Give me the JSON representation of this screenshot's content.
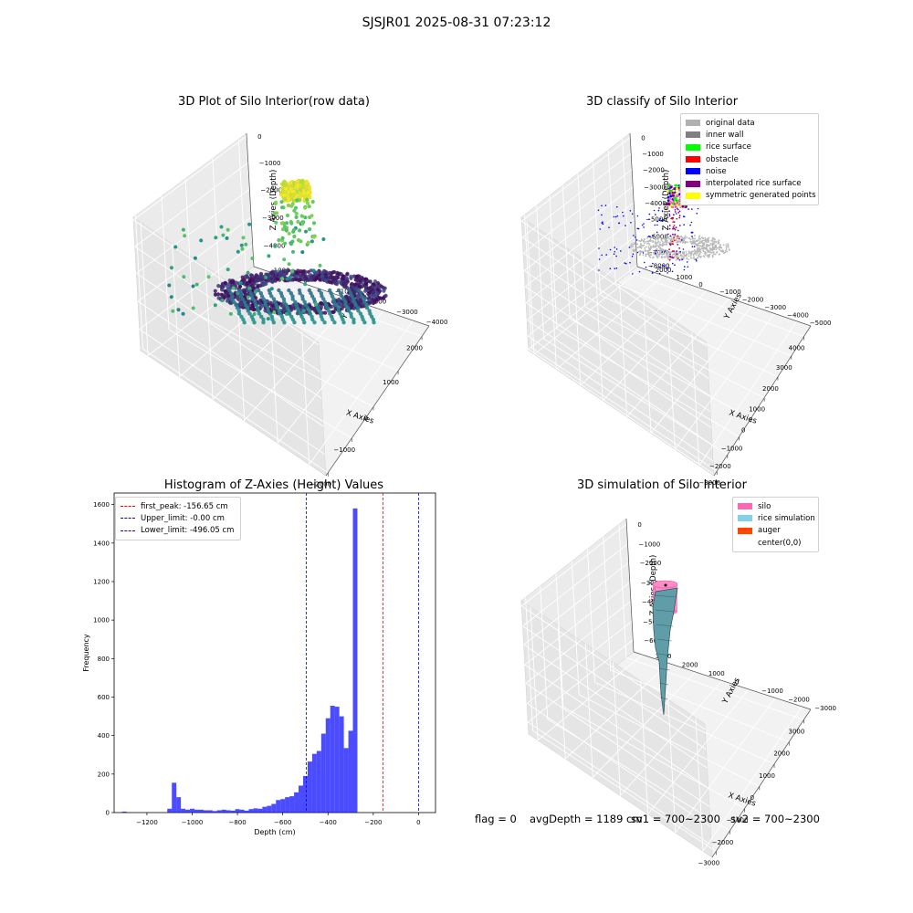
{
  "suptitle": "SJSJR01 2025-08-31 07:23:12",
  "chart_data": [
    {
      "type": "scatter",
      "projection": "3d",
      "title": "3D Plot of Silo Interior(row data)",
      "xlabel": "X Axies",
      "ylabel": "Y Axies",
      "zlabel": "Z Axies (Depth)",
      "x_ticks": [
        "−2000",
        "−1000",
        "0",
        "1000",
        "2000"
      ],
      "y_ticks": [
        "1000",
        "0",
        "−1000",
        "−2000",
        "−3000",
        "−4000"
      ],
      "z_ticks": [
        "0",
        "−1000",
        "−2000",
        "−3000",
        "−4000"
      ],
      "xlim": [
        -2200,
        2500
      ],
      "ylim": [
        -4300,
        1500
      ],
      "zlim": [
        -4500,
        200
      ],
      "colormap": "viridis (color by depth)"
    },
    {
      "type": "scatter",
      "projection": "3d",
      "title": "3D classify of Silo Interior",
      "xlabel": "X Axies",
      "ylabel": "Y Axies",
      "zlabel": "Z Axies (Depth)",
      "x_ticks": [
        "−3000",
        "−2000",
        "−1000",
        "0",
        "1000",
        "2000",
        "3000",
        "4000"
      ],
      "y_ticks": [
        "2000",
        "1000",
        "0",
        "−1000",
        "−2000",
        "−3000",
        "−4000",
        "−5000"
      ],
      "z_ticks": [
        "0",
        "−1000",
        "−2000",
        "−3000",
        "−4000",
        "−5000",
        "−6000",
        "−7000",
        "−8000"
      ],
      "xlim": [
        -3500,
        4200
      ],
      "ylim": [
        -5300,
        2300
      ],
      "zlim": [
        -8000,
        200
      ],
      "legend": [
        {
          "label": "original data",
          "color": "#b0b0b0"
        },
        {
          "label": "inner wall",
          "color": "#808080"
        },
        {
          "label": "rice surface",
          "color": "#00ff00"
        },
        {
          "label": "obstacle",
          "color": "#ff0000"
        },
        {
          "label": "noise",
          "color": "#0000ff"
        },
        {
          "label": "interpolated rice surface",
          "color": "#800080"
        },
        {
          "label": "symmetric generated points",
          "color": "#ffff00"
        }
      ]
    },
    {
      "type": "bar",
      "title": "Histogram of Z-Axies (Height) Values",
      "xlabel": "Depth (cm)",
      "ylabel": "Frequency",
      "x_ticks": [
        "−1200",
        "−1000",
        "−800",
        "−600",
        "−400",
        "−200",
        "0"
      ],
      "y_ticks": [
        "0",
        "200",
        "400",
        "600",
        "800",
        "1000",
        "1200",
        "1400",
        "1600"
      ],
      "xlim": [
        -1345,
        75
      ],
      "ylim": [
        0,
        1660
      ],
      "bin_edges_start": -1310,
      "bin_width": 20,
      "values": [
        5,
        0,
        0,
        0,
        0,
        0,
        0,
        0,
        0,
        0,
        20,
        155,
        80,
        20,
        15,
        20,
        15,
        15,
        12,
        12,
        8,
        12,
        15,
        12,
        10,
        18,
        15,
        10,
        18,
        22,
        20,
        30,
        35,
        45,
        65,
        70,
        80,
        85,
        105,
        140,
        190,
        265,
        305,
        320,
        410,
        490,
        555,
        550,
        500,
        335,
        425,
        1580
      ],
      "bar_color": "#0000ff",
      "vlines": [
        {
          "label": "first_peak: -156.65 cm",
          "x": -156.65,
          "color": "#ff0000"
        },
        {
          "label": "Upper_limit: -0.00 cm",
          "x": 0,
          "color": "#0000ff"
        },
        {
          "label": "Lower_limit: -496.05 cm",
          "x": -496.05,
          "color": "#0000ff"
        }
      ]
    },
    {
      "type": "surface",
      "projection": "3d",
      "title": "3D simulation of Silo Interior",
      "xlabel": "X Axies",
      "ylabel": "Y Axies",
      "zlabel": "Z Axies (Depth)",
      "x_ticks": [
        "−3000",
        "−2000",
        "−1000",
        "0",
        "1000",
        "2000",
        "3000"
      ],
      "y_ticks": [
        "3000",
        "2000",
        "1000",
        "0",
        "−1000",
        "−2000",
        "−3000"
      ],
      "z_ticks": [
        "0",
        "−1000",
        "−2000",
        "−3000",
        "−4000",
        "−5000",
        "−6000"
      ],
      "xlim": [
        -3300,
        3300
      ],
      "ylim": [
        -3300,
        3300
      ],
      "zlim": [
        -6800,
        300
      ],
      "legend": [
        {
          "label": "silo",
          "color": "#ff69b4"
        },
        {
          "label": "rice simulation",
          "color": "#87ceeb"
        },
        {
          "label": "auger",
          "color": "#ff4500"
        },
        {
          "label": "center(0,0)",
          "color": ""
        }
      ]
    }
  ],
  "footer": {
    "flag": "flag = 0",
    "avg_depth": "avgDepth = 1189 cm",
    "sv1": "sv1 = 700~2300",
    "sv2": "sv2 = 700~2300"
  }
}
